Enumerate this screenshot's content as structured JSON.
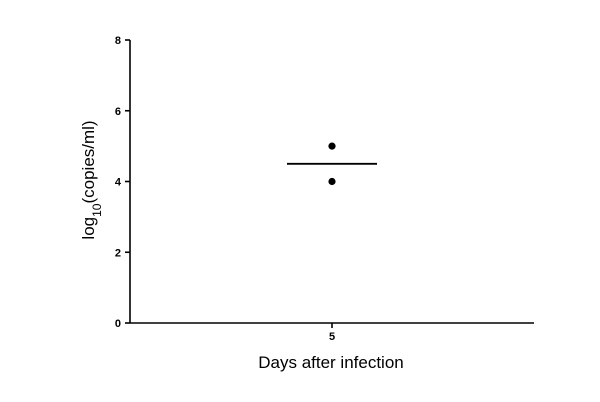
{
  "chart_data": {
    "type": "scatter",
    "xlabel": "Days after infection",
    "ylabel": {
      "base": "log",
      "subscript": "10",
      "rest": "(copies/ml)"
    },
    "categories": [
      "5"
    ],
    "ylim": [
      0,
      8
    ],
    "yticks": [
      "0",
      "2",
      "4",
      "6",
      "8"
    ],
    "points": [
      {
        "x": "5",
        "y": 5
      },
      {
        "x": "5",
        "y": 4
      }
    ],
    "mean": [
      {
        "x": "5",
        "y": 4.5
      }
    ],
    "grid": false,
    "legend": "none",
    "colors": {
      "marks": "#000000",
      "axes": "#000000",
      "background": "#ffffff"
    }
  }
}
